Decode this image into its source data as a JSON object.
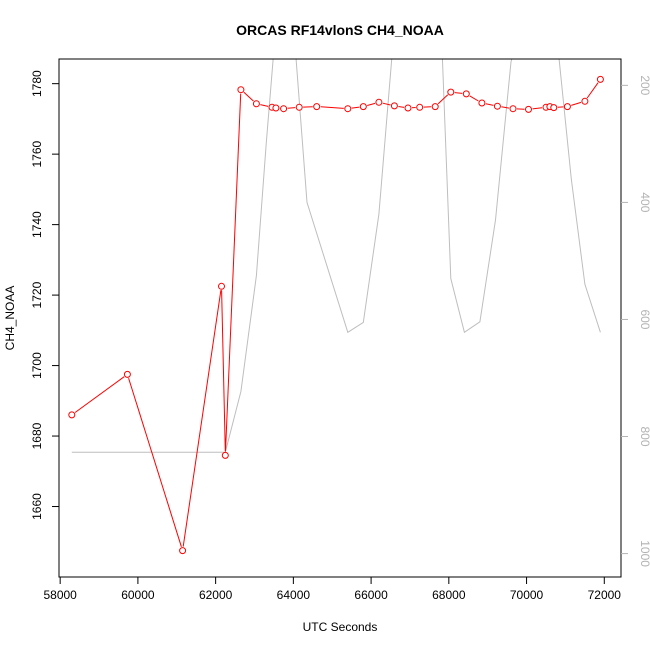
{
  "chart_data": {
    "type": "line",
    "title": "ORCAS RF14vlonS CH4_NOAA",
    "xlabel": "UTC Seconds",
    "ylabel": "CH4_NOAA",
    "xlim": [
      57970,
      72430
    ],
    "ylim": [
      1640,
      1787
    ],
    "x_ticks": [
      58000,
      60000,
      62000,
      64000,
      66000,
      68000,
      70000,
      72000
    ],
    "y_ticks": [
      1660,
      1680,
      1700,
      1720,
      1740,
      1760,
      1780
    ],
    "y2_ticks": [
      200,
      400,
      600,
      800,
      1000
    ],
    "y2lim": [
      1040,
      155
    ],
    "colors": {
      "main": "#ff0000",
      "secondary": "#bebebe",
      "axis": "#000000",
      "axis2": "#b3b3b3"
    },
    "series": [
      {
        "axis": "left",
        "marker": "open-circle",
        "points": [
          [
            58300,
            1686
          ],
          [
            59730,
            1697.5
          ],
          [
            61150,
            1647.5
          ],
          [
            62150,
            1722.5
          ],
          [
            62250,
            1674.5
          ],
          [
            62650,
            1778.3
          ],
          [
            63050,
            1774.3
          ],
          [
            63450,
            1773.3
          ],
          [
            63550,
            1773.1
          ],
          [
            63750,
            1772.9
          ],
          [
            64150,
            1773.3
          ],
          [
            64600,
            1773.5
          ],
          [
            65400,
            1772.9
          ],
          [
            65800,
            1773.5
          ],
          [
            66200,
            1774.7
          ],
          [
            66600,
            1773.7
          ],
          [
            66950,
            1773.1
          ],
          [
            67250,
            1773.3
          ],
          [
            67650,
            1773.5
          ],
          [
            68050,
            1777.6
          ],
          [
            68450,
            1777.1
          ],
          [
            68850,
            1774.5
          ],
          [
            69250,
            1773.6
          ],
          [
            69650,
            1772.9
          ],
          [
            70050,
            1772.7
          ],
          [
            70500,
            1773.3
          ],
          [
            70600,
            1773.5
          ],
          [
            70700,
            1773.2
          ],
          [
            71050,
            1773.5
          ],
          [
            71500,
            1775
          ],
          [
            71900,
            1781.2
          ]
        ]
      },
      {
        "axis": "right",
        "points": [
          [
            58300,
            827
          ],
          [
            62250,
            827
          ],
          [
            62650,
            723
          ],
          [
            63050,
            525
          ],
          [
            63300,
            300
          ],
          [
            63600,
            58
          ],
          [
            64000,
            95
          ],
          [
            64350,
            400
          ],
          [
            65400,
            622
          ],
          [
            65800,
            605
          ],
          [
            66200,
            420
          ],
          [
            66600,
            100
          ],
          [
            67000,
            68
          ],
          [
            67400,
            70
          ],
          [
            67800,
            95
          ],
          [
            68050,
            530
          ],
          [
            68400,
            622
          ],
          [
            68800,
            604
          ],
          [
            69200,
            430
          ],
          [
            69600,
            160
          ],
          [
            70000,
            65
          ],
          [
            70400,
            68
          ],
          [
            70800,
            130
          ],
          [
            71150,
            360
          ],
          [
            71500,
            540
          ],
          [
            71900,
            622
          ]
        ]
      }
    ]
  }
}
